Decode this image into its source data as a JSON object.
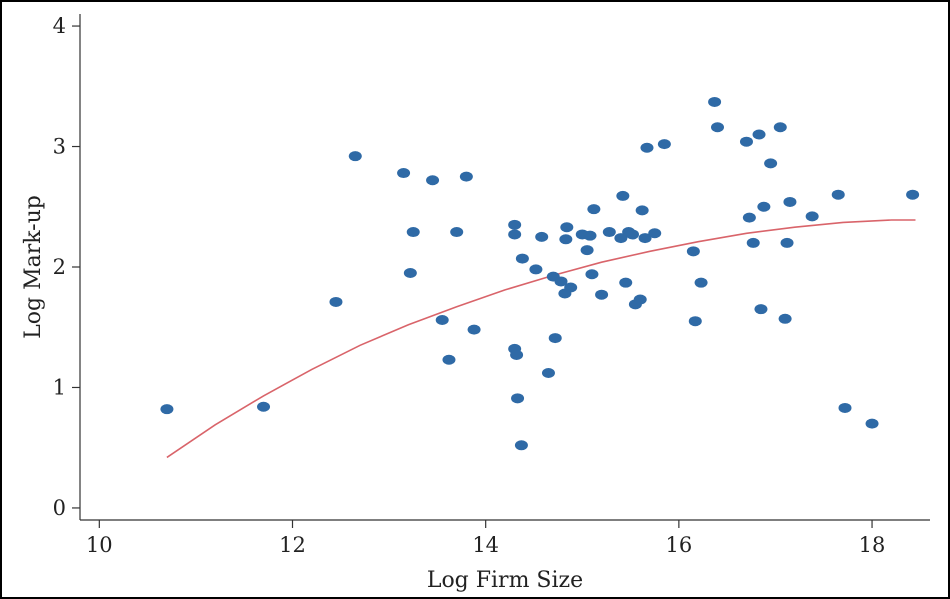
{
  "chart_data": {
    "type": "scatter",
    "title": "",
    "xlabel": "Log Firm Size",
    "ylabel": "Log Mark-up",
    "xlim": [
      9.8,
      18.6
    ],
    "ylim": [
      -0.1,
      4.1
    ],
    "xticks": [
      10,
      12,
      14,
      16,
      18
    ],
    "yticks": [
      0,
      1,
      2,
      3,
      4
    ],
    "x_tick_labels": [
      "10",
      "12",
      "14",
      "16",
      "18"
    ],
    "y_tick_labels": [
      "0",
      "1",
      "2",
      "3",
      "4"
    ],
    "grid": false,
    "legend": "none",
    "colors": {
      "points": "#2f6aa6",
      "fit": "#d9646a",
      "axis": "#333333",
      "frame": "#000000"
    },
    "series": [
      {
        "kind": "scatter",
        "points": [
          [
            10.7,
            0.82
          ],
          [
            11.7,
            0.84
          ],
          [
            12.45,
            1.71
          ],
          [
            12.65,
            2.92
          ],
          [
            13.15,
            2.78
          ],
          [
            13.22,
            1.95
          ],
          [
            13.25,
            2.29
          ],
          [
            13.45,
            2.72
          ],
          [
            13.55,
            1.56
          ],
          [
            13.62,
            1.23
          ],
          [
            13.7,
            2.29
          ],
          [
            13.8,
            2.75
          ],
          [
            13.88,
            1.48
          ],
          [
            14.3,
            2.35
          ],
          [
            14.3,
            2.27
          ],
          [
            14.3,
            1.32
          ],
          [
            14.32,
            1.27
          ],
          [
            14.33,
            0.91
          ],
          [
            14.37,
            0.52
          ],
          [
            14.38,
            2.07
          ],
          [
            14.52,
            1.98
          ],
          [
            14.58,
            2.25
          ],
          [
            14.65,
            1.12
          ],
          [
            14.7,
            1.92
          ],
          [
            14.72,
            1.41
          ],
          [
            14.78,
            1.88
          ],
          [
            14.82,
            1.78
          ],
          [
            14.83,
            2.23
          ],
          [
            14.84,
            2.33
          ],
          [
            14.88,
            1.83
          ],
          [
            15.0,
            2.27
          ],
          [
            15.05,
            2.14
          ],
          [
            15.08,
            2.26
          ],
          [
            15.1,
            1.94
          ],
          [
            15.12,
            2.48
          ],
          [
            15.2,
            1.77
          ],
          [
            15.28,
            2.29
          ],
          [
            15.4,
            2.24
          ],
          [
            15.42,
            2.59
          ],
          [
            15.45,
            1.87
          ],
          [
            15.48,
            2.29
          ],
          [
            15.52,
            2.27
          ],
          [
            15.55,
            1.69
          ],
          [
            15.6,
            1.73
          ],
          [
            15.62,
            2.47
          ],
          [
            15.65,
            2.24
          ],
          [
            15.67,
            2.99
          ],
          [
            15.75,
            2.28
          ],
          [
            15.85,
            3.02
          ],
          [
            16.15,
            2.13
          ],
          [
            16.17,
            1.55
          ],
          [
            16.23,
            1.87
          ],
          [
            16.37,
            3.37
          ],
          [
            16.4,
            3.16
          ],
          [
            16.7,
            3.04
          ],
          [
            16.73,
            2.41
          ],
          [
            16.77,
            2.2
          ],
          [
            16.83,
            3.1
          ],
          [
            16.85,
            1.65
          ],
          [
            16.88,
            2.5
          ],
          [
            16.95,
            2.86
          ],
          [
            17.05,
            3.16
          ],
          [
            17.1,
            1.57
          ],
          [
            17.12,
            2.2
          ],
          [
            17.15,
            2.54
          ],
          [
            17.38,
            2.42
          ],
          [
            17.65,
            2.6
          ],
          [
            17.72,
            0.83
          ],
          [
            18.0,
            0.7
          ],
          [
            18.42,
            2.6
          ]
        ]
      },
      {
        "kind": "fit-line",
        "points": [
          [
            10.7,
            0.42
          ],
          [
            11.2,
            0.69
          ],
          [
            11.7,
            0.93
          ],
          [
            12.2,
            1.15
          ],
          [
            12.7,
            1.35
          ],
          [
            13.2,
            1.52
          ],
          [
            13.7,
            1.67
          ],
          [
            14.2,
            1.81
          ],
          [
            14.7,
            1.93
          ],
          [
            15.2,
            2.04
          ],
          [
            15.7,
            2.13
          ],
          [
            16.2,
            2.21
          ],
          [
            16.7,
            2.28
          ],
          [
            17.2,
            2.33
          ],
          [
            17.7,
            2.37
          ],
          [
            18.2,
            2.39
          ],
          [
            18.45,
            2.39
          ]
        ]
      }
    ]
  }
}
